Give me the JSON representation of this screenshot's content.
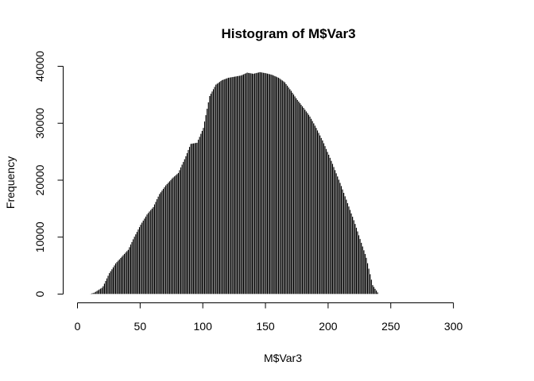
{
  "chart_data": {
    "type": "bar",
    "title": "Histogram of M$Var3",
    "xlabel": "M$Var3",
    "ylabel": "Frequency",
    "xlim": [
      0,
      326
    ],
    "ylim": [
      0,
      40000
    ],
    "x_ticks": [
      0,
      50,
      100,
      150,
      200,
      250,
      300
    ],
    "y_ticks": [
      0,
      10000,
      20000,
      30000,
      40000
    ],
    "bin_width": 1,
    "bin_start": 0,
    "grid": false,
    "bar_fill": "#000000",
    "bar_stroke": "#ffffff",
    "values": [
      0,
      0,
      0,
      0,
      0,
      0,
      0,
      0,
      0,
      0,
      70,
      140,
      210,
      280,
      420,
      560,
      700,
      840,
      980,
      1120,
      1400,
      1860,
      2320,
      2780,
      3240,
      3700,
      4040,
      4380,
      4720,
      5060,
      5400,
      5640,
      5880,
      6120,
      6360,
      6600,
      6840,
      7080,
      7320,
      7560,
      7800,
      8260,
      8720,
      9180,
      9640,
      10100,
      10520,
      10940,
      11360,
      11780,
      12200,
      12560,
      12920,
      13280,
      13640,
      14000,
      14260,
      14520,
      14780,
      15040,
      15300,
      15760,
      16220,
      16680,
      17140,
      17600,
      17900,
      18200,
      18500,
      18800,
      19100,
      19340,
      19580,
      19820,
      20060,
      20300,
      20500,
      20700,
      20900,
      21100,
      21300,
      21780,
      22260,
      22740,
      23220,
      23700,
      24240,
      24780,
      25320,
      25860,
      26400,
      26440,
      26480,
      26520,
      26560,
      26600,
      27120,
      27640,
      28160,
      28680,
      29200,
      30320,
      31440,
      32560,
      33680,
      34800,
      35200,
      35600,
      36000,
      36400,
      36800,
      36960,
      37120,
      37280,
      37440,
      37600,
      37680,
      37760,
      37840,
      37920,
      38000,
      38040,
      38080,
      38120,
      38160,
      38200,
      38240,
      38280,
      38320,
      38360,
      38400,
      38500,
      38600,
      38700,
      38800,
      38900,
      38860,
      38820,
      38780,
      38740,
      38700,
      38760,
      38820,
      38880,
      38940,
      39000,
      38960,
      38920,
      38880,
      38840,
      38800,
      38740,
      38680,
      38620,
      38560,
      38500,
      38400,
      38300,
      38200,
      38100,
      38000,
      37840,
      37680,
      37520,
      37360,
      37200,
      36900,
      36600,
      36300,
      36000,
      35700,
      35380,
      35060,
      34740,
      34420,
      34100,
      33820,
      33540,
      33260,
      32980,
      32700,
      32400,
      32100,
      31800,
      31500,
      31200,
      30800,
      30400,
      30000,
      29600,
      29200,
      28760,
      28320,
      27880,
      27440,
      27000,
      26500,
      26000,
      25500,
      25000,
      24500,
      23960,
      23420,
      22880,
      22340,
      21800,
      21240,
      20680,
      20120,
      19560,
      19000,
      18400,
      17800,
      17200,
      16600,
      16000,
      15400,
      14800,
      14200,
      13600,
      13000,
      12340,
      11680,
      11020,
      10360,
      9700,
      9040,
      8380,
      7720,
      7060,
      6400,
      5440,
      4480,
      3520,
      2560,
      1600,
      1280,
      960,
      640,
      320,
      0,
      0,
      0,
      0,
      0,
      0,
      0,
      0,
      0,
      0,
      0,
      0,
      0,
      0,
      0,
      0,
      0,
      0,
      0,
      0
    ]
  }
}
